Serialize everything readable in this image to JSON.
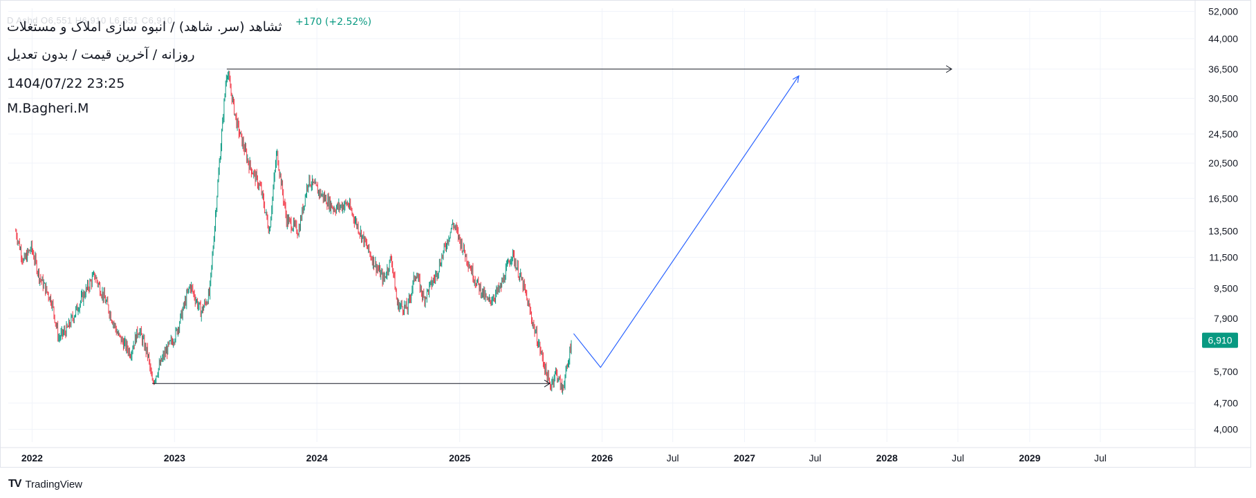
{
  "header": {
    "title": "ثشاهد (سر. شاهد) / انبوه سازی املاک و مستغلات",
    "subtitle": "روزانه / آخرین قیمت / بدون تعدیل",
    "datetime": "1404/07/22 23:25",
    "author": "M.Bagheri.M",
    "change": "+170 (+2.52%)",
    "faint_ohlc": "D  Ashd  O6,551  H6,910  L6,551  C6,910"
  },
  "brand": {
    "name": "TradingView",
    "logo_text": "TV"
  },
  "chart_data": {
    "type": "candlestick",
    "y_scale": "log",
    "ylim": [
      3700,
      53000
    ],
    "y_ticks": [
      4000,
      4700,
      5700,
      6910,
      7900,
      9500,
      11500,
      13500,
      16500,
      20500,
      24500,
      30500,
      36500,
      44000,
      52000
    ],
    "y_tick_labels": [
      "4,000",
      "4,700",
      "5,700",
      "6,910",
      "7,900",
      "9,500",
      "11,500",
      "13,500",
      "16,500",
      "20,500",
      "24,500",
      "30,500",
      "36,500",
      "44,000",
      "52,000"
    ],
    "x_ticks": [
      "2022",
      "2023",
      "2024",
      "2025",
      "2026",
      "Jul",
      "2027",
      "Jul",
      "2028",
      "Jul",
      "2029",
      "Jul"
    ],
    "x_tick_dates": [
      "2022-01-01",
      "2023-01-01",
      "2024-01-01",
      "2025-01-01",
      "2026-01-01",
      "2026-07-01",
      "2027-01-01",
      "2027-07-01",
      "2028-01-01",
      "2028-07-01",
      "2029-01-01",
      "2029-07-01"
    ],
    "x_range": [
      "2021-11-01",
      "2030-03-01"
    ],
    "last_price": 6910,
    "last_price_label": "6,910",
    "price_path": [
      {
        "date": "2021-11-20",
        "price": 13500
      },
      {
        "date": "2021-12-10",
        "price": 11200
      },
      {
        "date": "2021-12-30",
        "price": 12200
      },
      {
        "date": "2022-01-20",
        "price": 10200
      },
      {
        "date": "2022-02-20",
        "price": 8800
      },
      {
        "date": "2022-03-10",
        "price": 7000
      },
      {
        "date": "2022-04-01",
        "price": 7400
      },
      {
        "date": "2022-05-10",
        "price": 9000
      },
      {
        "date": "2022-06-10",
        "price": 10300
      },
      {
        "date": "2022-07-10",
        "price": 8700
      },
      {
        "date": "2022-08-10",
        "price": 7100
      },
      {
        "date": "2022-09-10",
        "price": 6400
      },
      {
        "date": "2022-10-01",
        "price": 7400
      },
      {
        "date": "2022-10-25",
        "price": 6300
      },
      {
        "date": "2022-11-05",
        "price": 5300
      },
      {
        "date": "2022-12-05",
        "price": 6300
      },
      {
        "date": "2023-01-05",
        "price": 7200
      },
      {
        "date": "2023-02-10",
        "price": 9700
      },
      {
        "date": "2023-03-10",
        "price": 8200
      },
      {
        "date": "2023-04-01",
        "price": 9200
      },
      {
        "date": "2023-04-20",
        "price": 17000
      },
      {
        "date": "2023-05-15",
        "price": 36500
      },
      {
        "date": "2023-06-10",
        "price": 26000
      },
      {
        "date": "2023-07-10",
        "price": 20500
      },
      {
        "date": "2023-08-10",
        "price": 17500
      },
      {
        "date": "2023-09-01",
        "price": 13500
      },
      {
        "date": "2023-09-20",
        "price": 22000
      },
      {
        "date": "2023-10-15",
        "price": 14500
      },
      {
        "date": "2023-11-15",
        "price": 13500
      },
      {
        "date": "2023-12-10",
        "price": 18500
      },
      {
        "date": "2024-01-10",
        "price": 17000
      },
      {
        "date": "2024-02-15",
        "price": 15500
      },
      {
        "date": "2024-03-20",
        "price": 16000
      },
      {
        "date": "2024-04-20",
        "price": 13500
      },
      {
        "date": "2024-05-20",
        "price": 11500
      },
      {
        "date": "2024-06-20",
        "price": 10000
      },
      {
        "date": "2024-07-10",
        "price": 11500
      },
      {
        "date": "2024-07-25",
        "price": 8600
      },
      {
        "date": "2024-08-20",
        "price": 8400
      },
      {
        "date": "2024-09-10",
        "price": 10500
      },
      {
        "date": "2024-10-01",
        "price": 8900
      },
      {
        "date": "2024-11-01",
        "price": 10300
      },
      {
        "date": "2024-12-15",
        "price": 14200
      },
      {
        "date": "2025-01-05",
        "price": 12500
      },
      {
        "date": "2025-02-10",
        "price": 10000
      },
      {
        "date": "2025-03-15",
        "price": 8700
      },
      {
        "date": "2025-04-15",
        "price": 9500
      },
      {
        "date": "2025-05-15",
        "price": 11800
      },
      {
        "date": "2025-06-15",
        "price": 9500
      },
      {
        "date": "2025-07-10",
        "price": 7500
      },
      {
        "date": "2025-08-01",
        "price": 6200
      },
      {
        "date": "2025-08-20",
        "price": 5200
      },
      {
        "date": "2025-09-05",
        "price": 5700
      },
      {
        "date": "2025-09-20",
        "price": 5100
      },
      {
        "date": "2025-10-05",
        "price": 5900
      },
      {
        "date": "2025-10-14",
        "price": 6910
      }
    ],
    "drawings": {
      "top_arrow": {
        "from": {
          "date": "2023-05-15",
          "price": 36500
        },
        "to": {
          "date": "2028-06-15",
          "price": 36500
        },
        "color": "#131722"
      },
      "bottom_arrow": {
        "from": {
          "date": "2022-11-05",
          "price": 5300
        },
        "to": {
          "date": "2025-08-20",
          "price": 5300
        },
        "color": "#131722"
      },
      "projection": {
        "points": [
          {
            "date": "2025-10-20",
            "price": 7200
          },
          {
            "date": "2025-12-28",
            "price": 5850
          },
          {
            "date": "2027-05-20",
            "price": 35000
          }
        ],
        "color": "#2962ff"
      }
    },
    "colors": {
      "up": "#089981",
      "down": "#f23645",
      "badge": "#089981",
      "grid": "#f0f3fa",
      "axis_text": "#131722"
    }
  }
}
